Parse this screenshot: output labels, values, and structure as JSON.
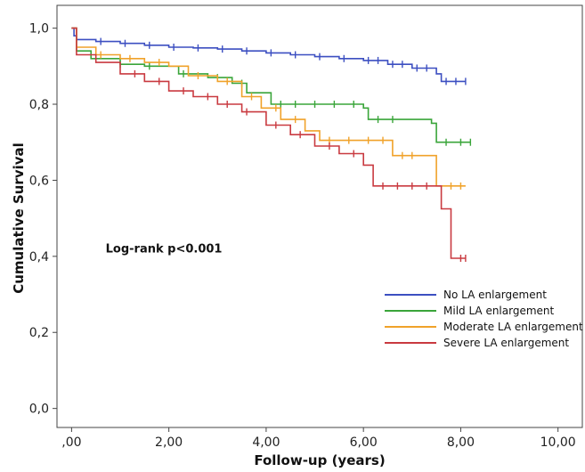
{
  "chart_data": {
    "type": "line",
    "title": "",
    "xlabel": "Follow-up (years)",
    "ylabel": "Cumulative Survival",
    "xlim": [
      -0.3,
      10.5
    ],
    "ylim": [
      -0.05,
      1.06
    ],
    "x_ticks": [
      {
        "value": 0,
        "label": ",00"
      },
      {
        "value": 2,
        "label": "2,00"
      },
      {
        "value": 4,
        "label": "4,00"
      },
      {
        "value": 6,
        "label": "6,00"
      },
      {
        "value": 8,
        "label": "8,00"
      },
      {
        "value": 10,
        "label": "10,00"
      }
    ],
    "y_ticks": [
      {
        "value": 0.0,
        "label": "0,0"
      },
      {
        "value": 0.2,
        "label": "0,2"
      },
      {
        "value": 0.4,
        "label": "0,4"
      },
      {
        "value": 0.6,
        "label": "0,6"
      },
      {
        "value": 0.8,
        "label": "0,8"
      },
      {
        "value": 1.0,
        "label": "1,0"
      }
    ],
    "grid": false,
    "legend_position": "bottom-right",
    "annotations": [
      {
        "text": "Log-rank p<0.001",
        "x": 0.7,
        "y": 0.41
      }
    ],
    "series": [
      {
        "name": "No LA enlargement",
        "color": "#3c4fc1",
        "points": [
          [
            0,
            1.0
          ],
          [
            0.05,
            0.98
          ],
          [
            0.1,
            0.97
          ],
          [
            0.5,
            0.965
          ],
          [
            1.0,
            0.96
          ],
          [
            1.5,
            0.955
          ],
          [
            2.0,
            0.95
          ],
          [
            2.5,
            0.948
          ],
          [
            3.0,
            0.945
          ],
          [
            3.5,
            0.94
          ],
          [
            4.0,
            0.935
          ],
          [
            4.5,
            0.93
          ],
          [
            5.0,
            0.925
          ],
          [
            5.5,
            0.92
          ],
          [
            6.0,
            0.915
          ],
          [
            6.5,
            0.905
          ],
          [
            7.0,
            0.895
          ],
          [
            7.5,
            0.88
          ],
          [
            7.6,
            0.86
          ],
          [
            8.1,
            0.86
          ]
        ],
        "censor_x": [
          0.6,
          1.1,
          1.6,
          2.1,
          2.6,
          3.1,
          3.6,
          4.1,
          4.6,
          5.1,
          5.6,
          6.1,
          6.3,
          6.6,
          6.8,
          7.1,
          7.3,
          7.7,
          7.9,
          8.1
        ]
      },
      {
        "name": "Mild LA enlargement",
        "color": "#3aa53a",
        "points": [
          [
            0,
            1.0
          ],
          [
            0.1,
            0.94
          ],
          [
            0.4,
            0.92
          ],
          [
            1.0,
            0.905
          ],
          [
            1.5,
            0.9
          ],
          [
            2.2,
            0.88
          ],
          [
            2.8,
            0.87
          ],
          [
            3.3,
            0.855
          ],
          [
            3.6,
            0.83
          ],
          [
            4.1,
            0.8
          ],
          [
            5.0,
            0.8
          ],
          [
            6.0,
            0.79
          ],
          [
            6.1,
            0.76
          ],
          [
            6.6,
            0.76
          ],
          [
            7.4,
            0.75
          ],
          [
            7.5,
            0.7
          ],
          [
            8.2,
            0.7
          ]
        ],
        "censor_x": [
          0.5,
          1.0,
          1.6,
          2.3,
          3.0,
          3.5,
          4.3,
          4.6,
          5.0,
          5.4,
          5.8,
          6.3,
          6.6,
          7.7,
          8.0,
          8.2
        ]
      },
      {
        "name": "Moderate LA enlargement",
        "color": "#f0a22a",
        "points": [
          [
            0,
            1.0
          ],
          [
            0.1,
            0.95
          ],
          [
            0.5,
            0.93
          ],
          [
            1.0,
            0.92
          ],
          [
            1.5,
            0.91
          ],
          [
            2.0,
            0.9
          ],
          [
            2.4,
            0.875
          ],
          [
            3.0,
            0.86
          ],
          [
            3.5,
            0.82
          ],
          [
            3.9,
            0.79
          ],
          [
            4.3,
            0.76
          ],
          [
            4.8,
            0.73
          ],
          [
            5.1,
            0.705
          ],
          [
            6.5,
            0.705
          ],
          [
            6.6,
            0.665
          ],
          [
            7.4,
            0.665
          ],
          [
            7.5,
            0.585
          ],
          [
            8.1,
            0.585
          ]
        ],
        "censor_x": [
          0.6,
          1.2,
          1.8,
          2.6,
          3.2,
          3.7,
          4.2,
          4.6,
          5.3,
          5.7,
          6.1,
          6.4,
          6.8,
          7.0,
          7.8,
          8.0
        ]
      },
      {
        "name": "Severe LA enlargement",
        "color": "#c93a40",
        "points": [
          [
            0,
            1.0
          ],
          [
            0.1,
            0.93
          ],
          [
            0.5,
            0.91
          ],
          [
            1.0,
            0.88
          ],
          [
            1.5,
            0.86
          ],
          [
            2.0,
            0.835
          ],
          [
            2.5,
            0.82
          ],
          [
            3.0,
            0.8
          ],
          [
            3.5,
            0.78
          ],
          [
            4.0,
            0.745
          ],
          [
            4.5,
            0.72
          ],
          [
            5.0,
            0.69
          ],
          [
            5.5,
            0.67
          ],
          [
            6.0,
            0.64
          ],
          [
            6.2,
            0.585
          ],
          [
            7.6,
            0.585
          ],
          [
            7.6,
            0.525
          ],
          [
            7.8,
            0.525
          ],
          [
            7.8,
            0.395
          ],
          [
            8.1,
            0.395
          ]
        ],
        "censor_x": [
          1.3,
          1.8,
          2.3,
          2.8,
          3.2,
          3.6,
          4.2,
          4.7,
          5.3,
          5.8,
          6.4,
          6.7,
          7.0,
          7.3,
          8.0,
          8.1
        ]
      }
    ]
  }
}
